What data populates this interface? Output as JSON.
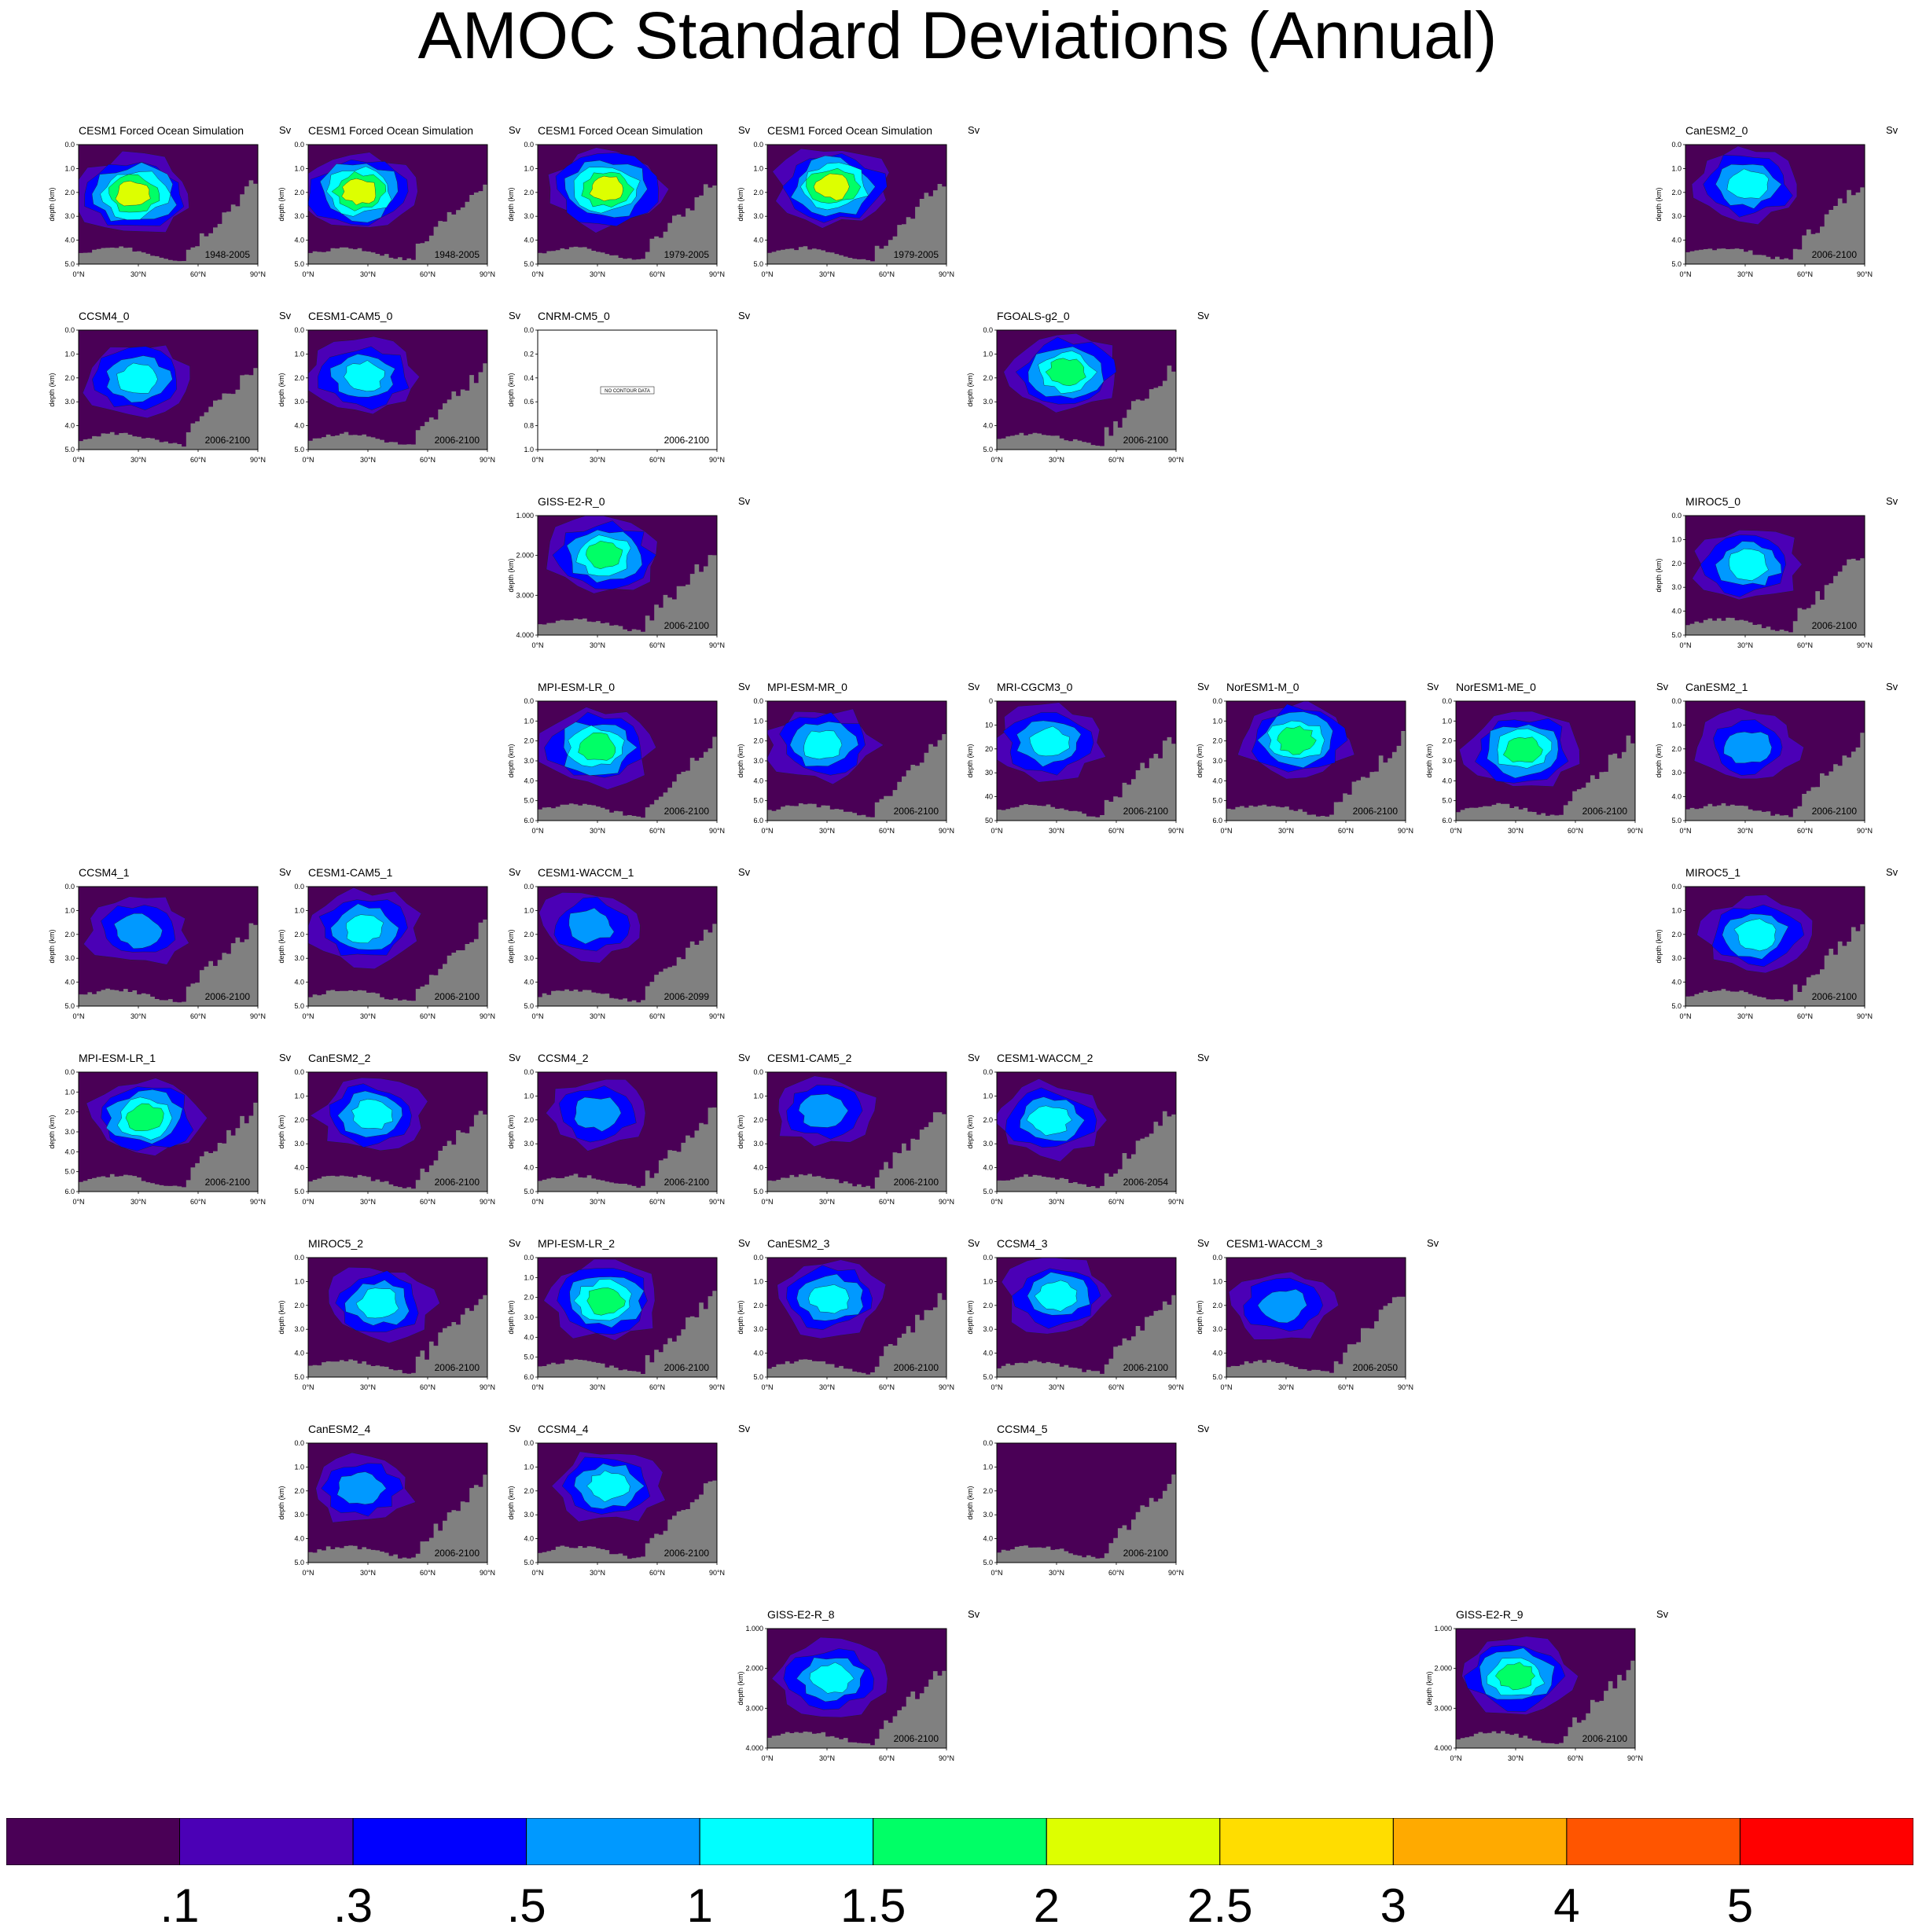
{
  "title": "AMOC Standard Deviations (Annual)",
  "units_label": "Sv",
  "ylabel": "depth (km)",
  "no_data_text": "NO CONTOUR DATA",
  "xticks": [
    "0°N",
    "30°N",
    "60°N",
    "90°N"
  ],
  "colorbar": {
    "colors": [
      "#4a0056",
      "#4b00b6",
      "#0000ff",
      "#0099ff",
      "#00ffff",
      "#00ff66",
      "#ddff00",
      "#ffdd00",
      "#ffaa00",
      "#ff5500",
      "#ff0000"
    ],
    "labels": [
      ".1",
      ".3",
      ".5",
      "1",
      "1.5",
      "2",
      "2.5",
      "3",
      "4",
      "5"
    ]
  },
  "chart_data": {
    "type": "heatmap",
    "title": "AMOC Standard Deviations (Annual)",
    "xlabel": "",
    "ylabel": "depth (km)",
    "xlim": [
      "0°N",
      "90°N"
    ],
    "levels": [
      0.1,
      0.3,
      0.5,
      1,
      1.5,
      2,
      2.5,
      3,
      4,
      5
    ],
    "units": "Sv",
    "panels": [
      {
        "name": "CESM1 Forced Ocean Simulation",
        "period": "1948-2005",
        "yticks": [
          "0.0",
          "1.0",
          "2.0",
          "3.0",
          "4.0",
          "5.0"
        ],
        "max_level": 2.5
      },
      {
        "name": "CESM1 Forced Ocean Simulation",
        "period": "1948-2005",
        "yticks": [
          "0.0",
          "1.0",
          "2.0",
          "3.0",
          "4.0",
          "5.0"
        ],
        "max_level": 2.5
      },
      {
        "name": "CESM1 Forced Ocean Simulation",
        "period": "1979-2005",
        "yticks": [
          "0.0",
          "1.0",
          "2.0",
          "3.0",
          "4.0",
          "5.0"
        ],
        "max_level": 2.5
      },
      {
        "name": "CESM1 Forced Ocean Simulation",
        "period": "1979-2005",
        "yticks": [
          "0.0",
          "1.0",
          "2.0",
          "3.0",
          "4.0",
          "5.0"
        ],
        "max_level": 2.5
      },
      {
        "name": "CanESM2_0",
        "period": "2006-2100",
        "yticks": [
          "0.0",
          "1.0",
          "2.0",
          "3.0",
          "4.0",
          "5.0"
        ],
        "max_level": 1.5
      },
      {
        "name": "CCSM4_0",
        "period": "2006-2100",
        "yticks": [
          "0.0",
          "1.0",
          "2.0",
          "3.0",
          "4.0",
          "5.0"
        ],
        "max_level": 1.5
      },
      {
        "name": "CESM1-CAM5_0",
        "period": "2006-2100",
        "yticks": [
          "0.0",
          "1.0",
          "2.0",
          "3.0",
          "4.0",
          "5.0"
        ],
        "max_level": 1.5
      },
      {
        "name": "CNRM-CM5_0",
        "period": "2006-2100",
        "yticks": [
          "0.0",
          "0.2",
          "0.4",
          "0.6",
          "0.8",
          "1.0"
        ],
        "max_level": null
      },
      {
        "name": "FGOALS-g2_0",
        "period": "2006-2100",
        "yticks": [
          "0.0",
          "1.0",
          "2.0",
          "3.0",
          "4.0",
          "5.0"
        ],
        "max_level": 2
      },
      {
        "name": "GISS-E2-R_0",
        "period": "2006-2100",
        "yticks": [
          "1.000",
          "2.000",
          "3.000",
          "4.000"
        ],
        "max_level": 2
      },
      {
        "name": "MIROC5_0",
        "period": "2006-2100",
        "yticks": [
          "0.0",
          "1.0",
          "2.0",
          "3.0",
          "4.0",
          "5.0"
        ],
        "max_level": 1.5
      },
      {
        "name": "MPI-ESM-LR_0",
        "period": "2006-2100",
        "yticks": [
          "0.0",
          "1.0",
          "2.0",
          "3.0",
          "4.0",
          "5.0",
          "6.0"
        ],
        "max_level": 2
      },
      {
        "name": "MPI-ESM-MR_0",
        "period": "2006-2100",
        "yticks": [
          "0.0",
          "1.0",
          "2.0",
          "3.0",
          "4.0",
          "5.0",
          "6.0"
        ],
        "max_level": 1.5
      },
      {
        "name": "MRI-CGCM3_0",
        "period": "2006-2100",
        "yticks": [
          "0",
          "10",
          "20",
          "30",
          "40",
          "50"
        ],
        "max_level": 1.5
      },
      {
        "name": "NorESM1-M_0",
        "period": "2006-2100",
        "yticks": [
          "0.0",
          "1.0",
          "2.0",
          "3.0",
          "4.0",
          "5.0",
          "6.0"
        ],
        "max_level": 2
      },
      {
        "name": "NorESM1-ME_0",
        "period": "2006-2100",
        "yticks": [
          "0.0",
          "1.0",
          "2.0",
          "3.0",
          "4.0",
          "5.0",
          "6.0"
        ],
        "max_level": 2
      },
      {
        "name": "CanESM2_1",
        "period": "2006-2100",
        "yticks": [
          "0.0",
          "1.0",
          "2.0",
          "3.0",
          "4.0",
          "5.0"
        ],
        "max_level": 1
      },
      {
        "name": "CCSM4_1",
        "period": "2006-2100",
        "yticks": [
          "0.0",
          "1.0",
          "2.0",
          "3.0",
          "4.0",
          "5.0"
        ],
        "max_level": 1
      },
      {
        "name": "CESM1-CAM5_1",
        "period": "2006-2100",
        "yticks": [
          "0.0",
          "1.0",
          "2.0",
          "3.0",
          "4.0",
          "5.0"
        ],
        "max_level": 1.5
      },
      {
        "name": "CESM1-WACCM_1",
        "period": "2006-2099",
        "yticks": [
          "0.0",
          "1.0",
          "2.0",
          "3.0",
          "4.0",
          "5.0"
        ],
        "max_level": 1
      },
      {
        "name": "MIROC5_1",
        "period": "2006-2100",
        "yticks": [
          "0.0",
          "1.0",
          "2.0",
          "3.0",
          "4.0",
          "5.0"
        ],
        "max_level": 1.5
      },
      {
        "name": "MPI-ESM-LR_1",
        "period": "2006-2100",
        "yticks": [
          "0.0",
          "1.0",
          "2.0",
          "3.0",
          "4.0",
          "5.0",
          "6.0"
        ],
        "max_level": 2
      },
      {
        "name": "CanESM2_2",
        "period": "2006-2100",
        "yticks": [
          "0.0",
          "1.0",
          "2.0",
          "3.0",
          "4.0",
          "5.0"
        ],
        "max_level": 1.5
      },
      {
        "name": "CCSM4_2",
        "period": "2006-2100",
        "yticks": [
          "0.0",
          "1.0",
          "2.0",
          "3.0",
          "4.0",
          "5.0"
        ],
        "max_level": 1
      },
      {
        "name": "CESM1-CAM5_2",
        "period": "2006-2100",
        "yticks": [
          "0.0",
          "1.0",
          "2.0",
          "3.0",
          "4.0",
          "5.0"
        ],
        "max_level": 1
      },
      {
        "name": "CESM1-WACCM_2",
        "period": "2006-2054",
        "yticks": [
          "0.0",
          "1.0",
          "2.0",
          "3.0",
          "4.0",
          "5.0"
        ],
        "max_level": 1.5
      },
      {
        "name": "MIROC5_2",
        "period": "2006-2100",
        "yticks": [
          "0.0",
          "1.0",
          "2.0",
          "3.0",
          "4.0",
          "5.0"
        ],
        "max_level": 1.5
      },
      {
        "name": "MPI-ESM-LR_2",
        "period": "2006-2100",
        "yticks": [
          "0.0",
          "1.0",
          "2.0",
          "3.0",
          "4.0",
          "5.0",
          "6.0"
        ],
        "max_level": 2
      },
      {
        "name": "CanESM2_3",
        "period": "2006-2100",
        "yticks": [
          "0.0",
          "1.0",
          "2.0",
          "3.0",
          "4.0",
          "5.0"
        ],
        "max_level": 1.5
      },
      {
        "name": "CCSM4_3",
        "period": "2006-2100",
        "yticks": [
          "0.0",
          "1.0",
          "2.0",
          "3.0",
          "4.0",
          "5.0"
        ],
        "max_level": 1.5
      },
      {
        "name": "CESM1-WACCM_3",
        "period": "2006-2050",
        "yticks": [
          "0.0",
          "1.0",
          "2.0",
          "3.0",
          "4.0",
          "5.0"
        ],
        "max_level": 1
      },
      {
        "name": "CanESM2_4",
        "period": "2006-2100",
        "yticks": [
          "0.0",
          "1.0",
          "2.0",
          "3.0",
          "4.0",
          "5.0"
        ],
        "max_level": 1
      },
      {
        "name": "CCSM4_4",
        "period": "2006-2100",
        "yticks": [
          "0.0",
          "1.0",
          "2.0",
          "3.0",
          "4.0",
          "5.0"
        ],
        "max_level": 1.5
      },
      {
        "name": "CCSM4_5",
        "period": "2006-2100",
        "yticks": [
          "0.0",
          "1.0",
          "2.0",
          "3.0",
          "4.0",
          "5.0"
        ],
        "max_level": 0.1
      },
      {
        "name": "GISS-E2-R_8",
        "period": "2006-2100",
        "yticks": [
          "1.000",
          "2.000",
          "3.000",
          "4.000"
        ],
        "max_level": 1.5
      },
      {
        "name": "GISS-E2-R_9",
        "period": "2006-2100",
        "yticks": [
          "1.000",
          "2.000",
          "3.000",
          "4.000"
        ],
        "max_level": 2
      }
    ]
  }
}
